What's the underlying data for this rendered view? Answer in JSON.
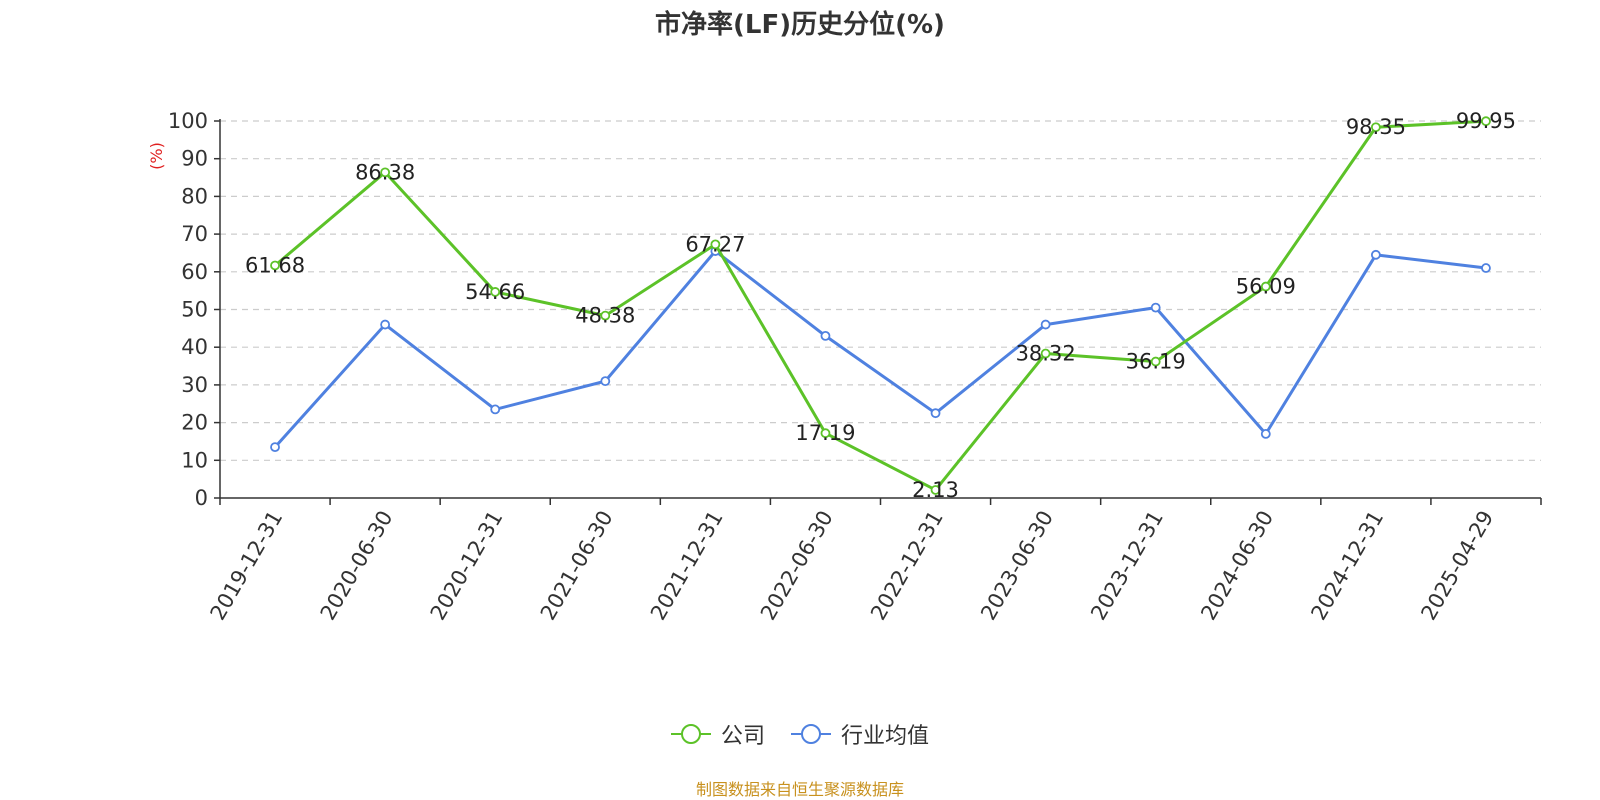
{
  "chart_data": {
    "type": "line",
    "title": "市净率(LF)历史分位(%)",
    "ylabel": "(%)",
    "ylim": [
      0,
      100
    ],
    "yticks": [
      "0",
      "10",
      "20",
      "30",
      "40",
      "50",
      "60",
      "70",
      "80",
      "90",
      "100"
    ],
    "categories": [
      "2019-12-31",
      "2020-06-30",
      "2020-12-31",
      "2021-06-30",
      "2021-12-31",
      "2022-06-30",
      "2022-12-31",
      "2023-06-30",
      "2023-12-31",
      "2024-06-30",
      "2024-12-31",
      "2025-04-29"
    ],
    "grid": true,
    "legend_position": "bottom",
    "series": [
      {
        "name": "公司",
        "color": "#5cc228",
        "values": [
          61.68,
          86.38,
          54.66,
          48.38,
          67.27,
          17.19,
          2.13,
          38.32,
          36.19,
          56.09,
          98.35,
          99.95
        ],
        "labels": [
          "61.68",
          "86.38",
          "54.66",
          "48.38",
          "67.27",
          "17.19",
          "2.13",
          "38.32",
          "36.19",
          "56.09",
          "98.35",
          "99.95"
        ]
      },
      {
        "name": "行业均值",
        "color": "#4f81e0",
        "values": [
          13.5,
          46.0,
          23.5,
          31.0,
          65.5,
          43.0,
          22.5,
          46.0,
          50.5,
          17.0,
          64.5,
          61.0
        ]
      }
    ]
  },
  "footer": {
    "source": "制图数据来自恒生聚源数据库"
  }
}
